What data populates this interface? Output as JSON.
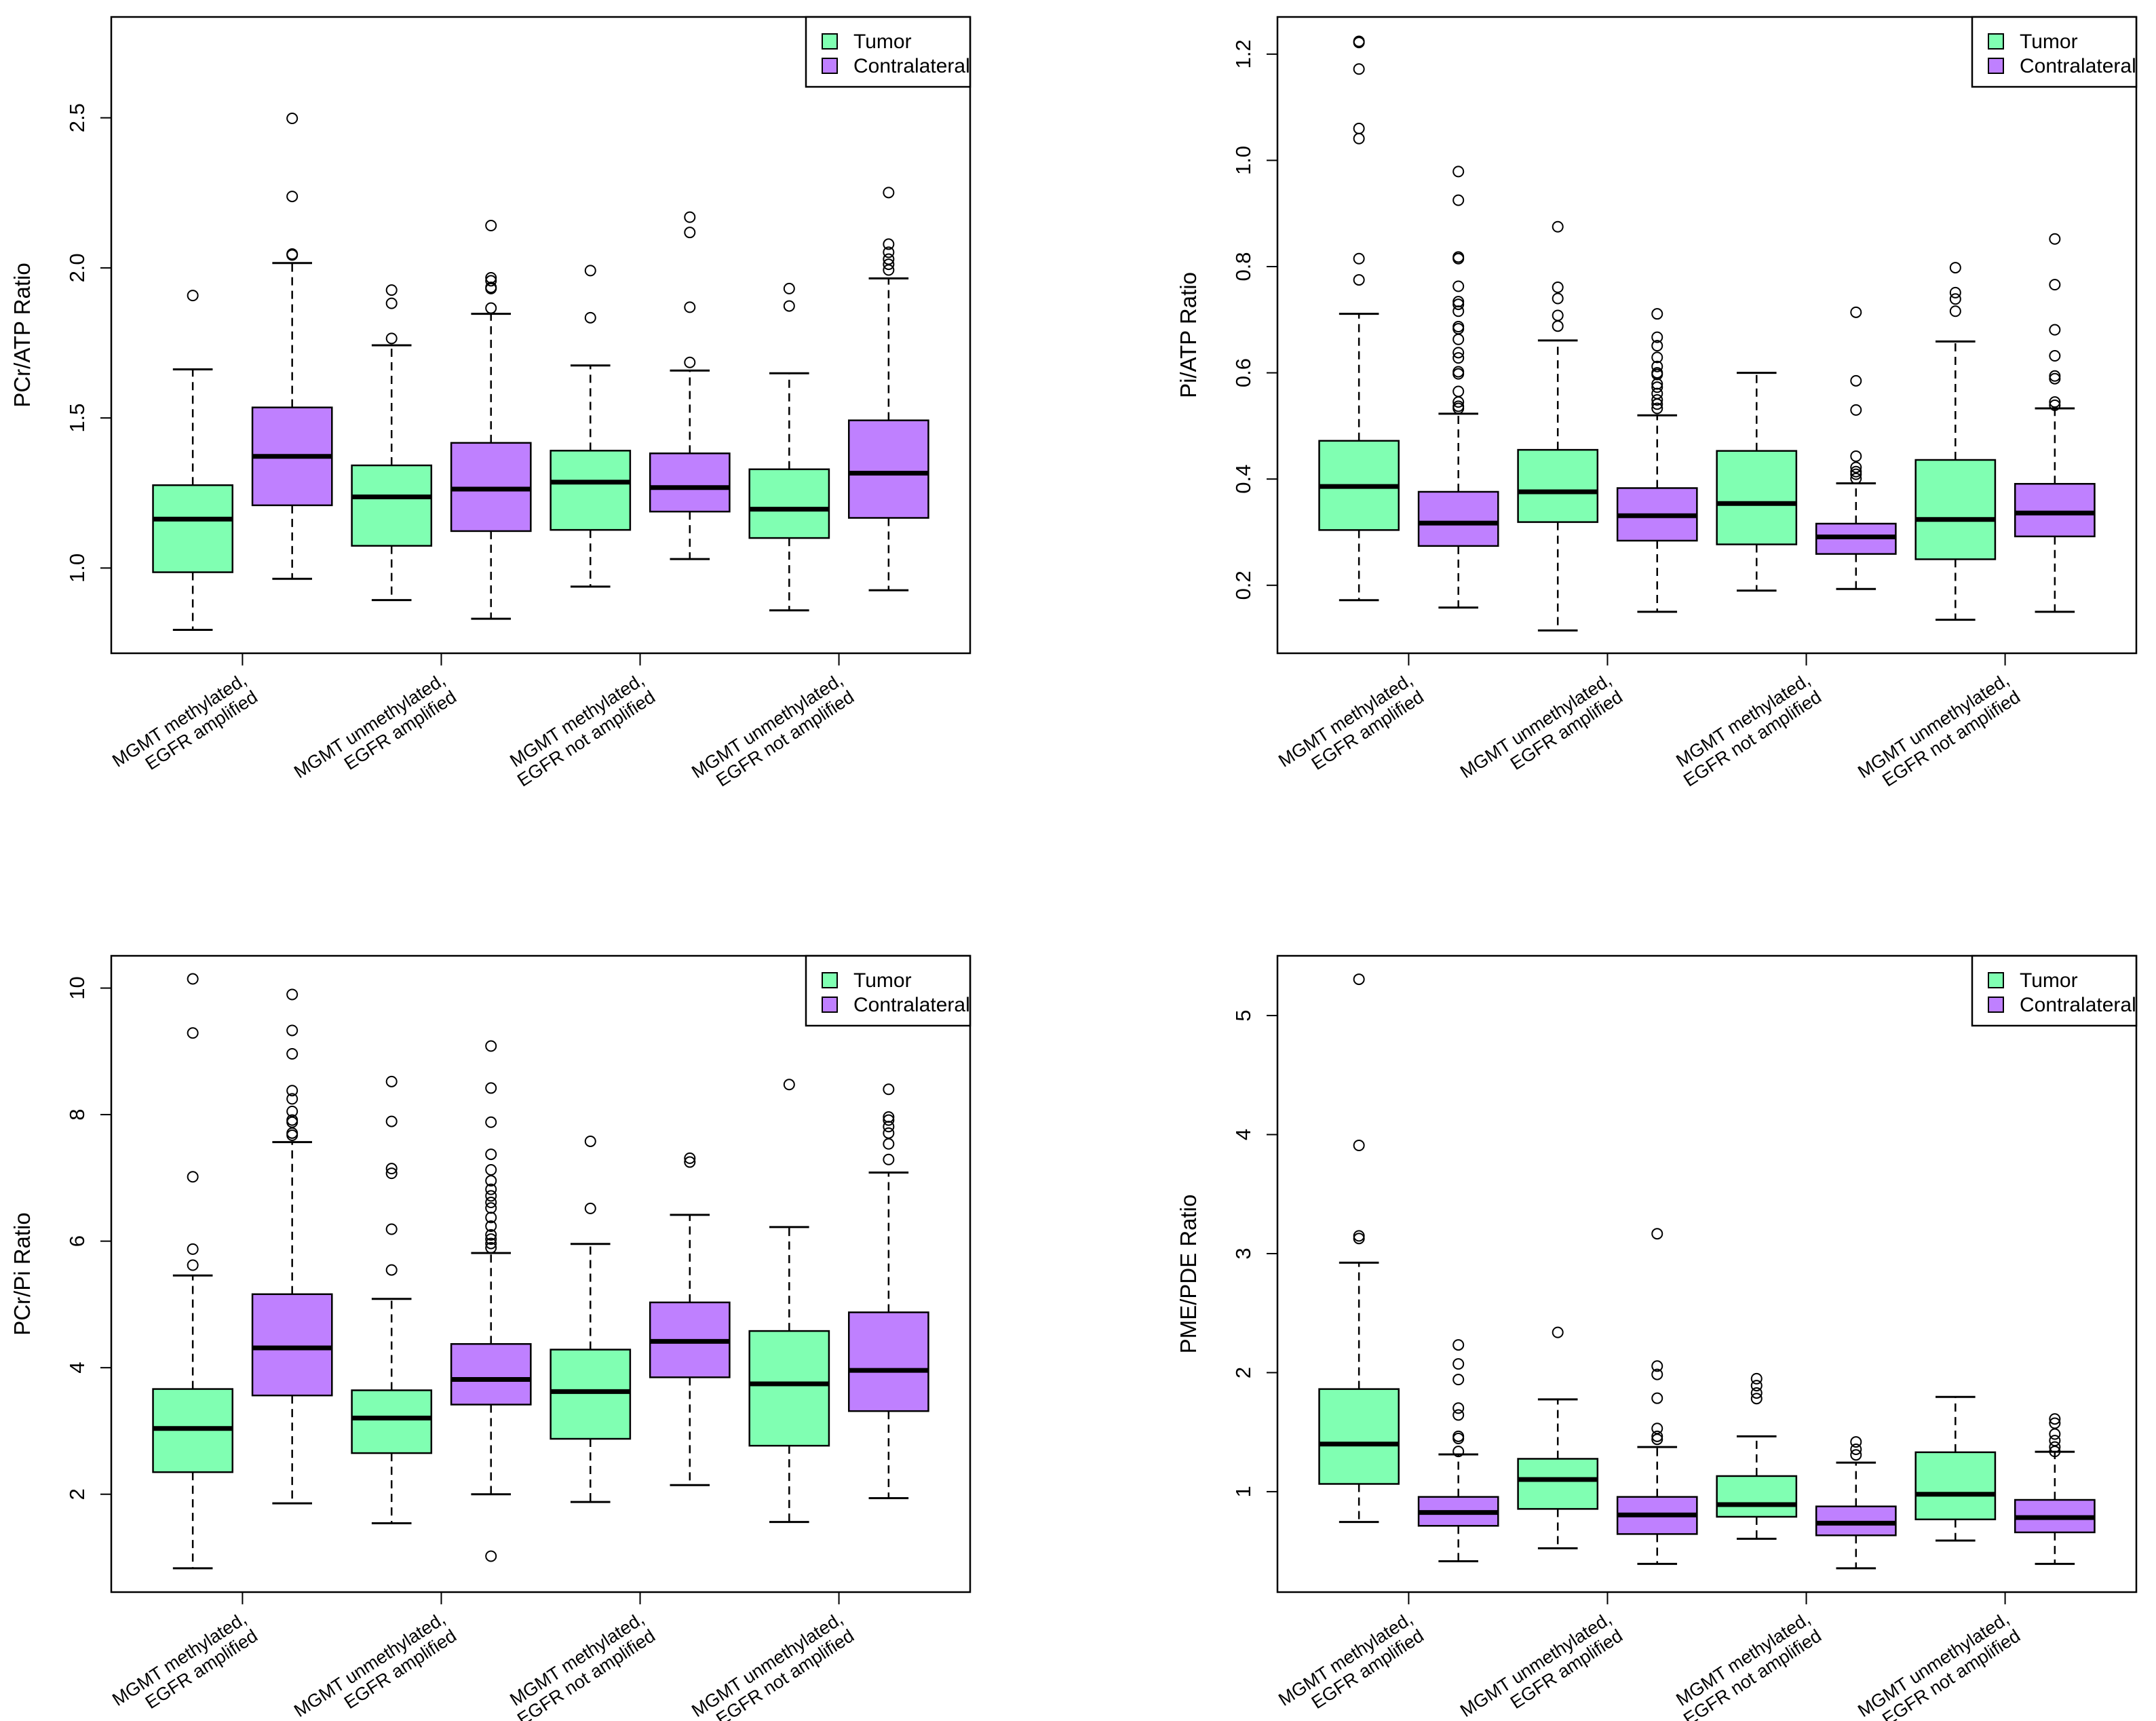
{
  "legend": {
    "tumor": "Tumor",
    "contralateral": "Contralateral"
  },
  "colors": {
    "tumor": "#80FFB2",
    "contralateral": "#BF80FF",
    "line": "#000000"
  },
  "x_categories": [
    [
      "MGMT methylated,",
      "EGFR amplified"
    ],
    [
      "MGMT unmethylated,",
      "EGFR amplified"
    ],
    [
      "MGMT methylated,",
      "EGFR not amplified"
    ],
    [
      "MGMT unmethylated,",
      "EGFR not amplified"
    ]
  ],
  "chart_data": [
    {
      "type": "boxplot",
      "ylabel": "PCr/ATP Ratio",
      "ylim": [
        0.716,
        2.836
      ],
      "yticks": [
        "1.0",
        "1.5",
        "2.0",
        "2.5"
      ],
      "legend_position": "top-right",
      "boxes": [
        {
          "series": "tumor",
          "stats": [
            0.794,
            0.986,
            1.163,
            1.276,
            1.662
          ],
          "outliers": [
            1.908
          ]
        },
        {
          "series": "contralateral",
          "stats": [
            0.964,
            1.209,
            1.372,
            1.535,
            2.016
          ],
          "outliers": [
            2.498,
            2.238,
            2.046,
            2.043
          ]
        },
        {
          "series": "tumor",
          "stats": [
            0.893,
            1.074,
            1.237,
            1.342,
            1.742
          ],
          "outliers": [
            1.926,
            1.882,
            1.765
          ]
        },
        {
          "series": "contralateral",
          "stats": [
            0.831,
            1.123,
            1.263,
            1.417,
            1.847
          ],
          "outliers": [
            2.141,
            1.967,
            1.957,
            1.935,
            1.931,
            1.866
          ]
        },
        {
          "series": "tumor",
          "stats": [
            0.938,
            1.127,
            1.286,
            1.391,
            1.675
          ],
          "outliers": [
            1.991,
            1.834
          ]
        },
        {
          "series": "contralateral",
          "stats": [
            1.03,
            1.188,
            1.268,
            1.382,
            1.658
          ],
          "outliers": [
            2.169,
            2.118,
            1.869,
            1.685
          ]
        },
        {
          "series": "tumor",
          "stats": [
            0.859,
            1.1,
            1.196,
            1.329,
            1.649
          ],
          "outliers": [
            1.931,
            1.873
          ]
        },
        {
          "series": "contralateral",
          "stats": [
            0.926,
            1.167,
            1.316,
            1.492,
            1.965
          ],
          "outliers": [
            2.251,
            2.079,
            2.052,
            2.029,
            2.012,
            1.993
          ]
        }
      ]
    },
    {
      "type": "boxplot",
      "ylabel": "Pi/ATP Ratio",
      "ylim": [
        0.072,
        1.27
      ],
      "yticks": [
        "0.2",
        "0.4",
        "0.6",
        "0.8",
        "1.0",
        "1.2"
      ],
      "legend_position": "top-right",
      "boxes": [
        {
          "series": "tumor",
          "stats": [
            0.172,
            0.304,
            0.386,
            0.472,
            0.711
          ],
          "outliers": [
            1.224,
            1.222,
            1.172,
            1.06,
            1.041,
            0.815,
            0.775
          ]
        },
        {
          "series": "contralateral",
          "stats": [
            0.158,
            0.274,
            0.317,
            0.376,
            0.523
          ],
          "outliers": [
            0.979,
            0.925,
            0.818,
            0.815,
            0.763,
            0.734,
            0.729,
            0.716,
            0.687,
            0.683,
            0.663,
            0.638,
            0.628,
            0.602,
            0.598,
            0.565,
            0.545,
            0.537,
            0.533
          ]
        },
        {
          "series": "tumor",
          "stats": [
            0.115,
            0.319,
            0.376,
            0.455,
            0.661
          ],
          "outliers": [
            0.875,
            0.761,
            0.74,
            0.708,
            0.688
          ]
        },
        {
          "series": "contralateral",
          "stats": [
            0.15,
            0.284,
            0.331,
            0.383,
            0.52
          ],
          "outliers": [
            0.711,
            0.667,
            0.651,
            0.629,
            0.612,
            0.6,
            0.597,
            0.579,
            0.573,
            0.561,
            0.549,
            0.541,
            0.533
          ]
        },
        {
          "series": "tumor",
          "stats": [
            0.19,
            0.277,
            0.354,
            0.453,
            0.6
          ],
          "outliers": []
        },
        {
          "series": "contralateral",
          "stats": [
            0.193,
            0.259,
            0.291,
            0.316,
            0.392
          ],
          "outliers": [
            0.714,
            0.585,
            0.53,
            0.443,
            0.422,
            0.414,
            0.409,
            0.401
          ]
        },
        {
          "series": "tumor",
          "stats": [
            0.135,
            0.249,
            0.324,
            0.436,
            0.659
          ],
          "outliers": [
            0.798,
            0.751,
            0.739,
            0.716
          ]
        },
        {
          "series": "contralateral",
          "stats": [
            0.15,
            0.292,
            0.336,
            0.391,
            0.533
          ],
          "outliers": [
            0.852,
            0.766,
            0.681,
            0.632,
            0.594,
            0.589,
            0.545,
            0.539
          ]
        }
      ]
    },
    {
      "type": "boxplot",
      "ylabel": "PCr/Pi Ratio",
      "ylim": [
        0.453,
        10.51
      ],
      "yticks": [
        "2",
        "4",
        "6",
        "8",
        "10"
      ],
      "legend_position": "top-right",
      "boxes": [
        {
          "series": "tumor",
          "stats": [
            0.83,
            2.349,
            3.04,
            3.663,
            5.457
          ],
          "outliers": [
            10.145,
            9.29,
            7.017,
            5.874,
            5.621
          ]
        },
        {
          "series": "contralateral",
          "stats": [
            1.856,
            3.561,
            4.313,
            5.162,
            7.565
          ],
          "outliers": [
            9.899,
            9.331,
            8.961,
            8.379,
            8.249,
            8.051,
            7.914,
            7.88,
            7.708,
            7.674
          ]
        },
        {
          "series": "tumor",
          "stats": [
            1.541,
            2.65,
            3.205,
            3.643,
            5.087
          ],
          "outliers": [
            8.523,
            7.893,
            7.147,
            7.072,
            6.189,
            5.545
          ]
        },
        {
          "series": "contralateral",
          "stats": [
            2.0,
            3.417,
            3.814,
            4.375,
            5.812
          ],
          "outliers": [
            9.084,
            8.42,
            7.88,
            7.373,
            7.127,
            6.955,
            6.819,
            6.716,
            6.613,
            6.524,
            6.374,
            6.237,
            6.1,
            6.032,
            5.963,
            5.895,
            1.021
          ]
        },
        {
          "series": "tumor",
          "stats": [
            1.877,
            2.876,
            3.622,
            4.286,
            5.956
          ],
          "outliers": [
            7.578,
            6.517
          ]
        },
        {
          "series": "contralateral",
          "stats": [
            2.144,
            3.848,
            4.416,
            5.032,
            6.415
          ],
          "outliers": [
            7.311,
            7.25
          ]
        },
        {
          "series": "tumor",
          "stats": [
            1.562,
            2.767,
            3.745,
            4.58,
            6.223
          ],
          "outliers": [
            8.475
          ]
        },
        {
          "series": "contralateral",
          "stats": [
            1.938,
            3.314,
            3.958,
            4.875,
            7.085
          ],
          "outliers": [
            8.4,
            7.962,
            7.914,
            7.811,
            7.708,
            7.537,
            7.291
          ]
        }
      ]
    },
    {
      "type": "boxplot",
      "ylabel": "PME/PDE Ratio",
      "ylim": [
        0.156,
        5.502
      ],
      "yticks": [
        "1",
        "2",
        "3",
        "4",
        "5"
      ],
      "legend_position": "top-right",
      "boxes": [
        {
          "series": "tumor",
          "stats": [
            0.745,
            1.065,
            1.4,
            1.862,
            2.924
          ],
          "outliers": [
            5.305,
            3.909,
            3.149,
            3.127
          ]
        },
        {
          "series": "contralateral",
          "stats": [
            0.415,
            0.713,
            0.825,
            0.956,
            1.313
          ],
          "outliers": [
            2.233,
            2.073,
            1.942,
            1.702,
            1.644,
            1.465,
            1.447,
            1.338
          ]
        },
        {
          "series": "tumor",
          "stats": [
            0.524,
            0.855,
            1.102,
            1.276,
            1.775
          ],
          "outliers": [
            2.338
          ]
        },
        {
          "series": "contralateral",
          "stats": [
            0.393,
            0.644,
            0.804,
            0.956,
            1.375
          ],
          "outliers": [
            3.167,
            2.055,
            1.985,
            1.785,
            1.531,
            1.465,
            1.44
          ]
        },
        {
          "series": "tumor",
          "stats": [
            0.604,
            0.789,
            0.891,
            1.131,
            1.465
          ],
          "outliers": [
            1.949,
            1.891,
            1.829,
            1.782
          ]
        },
        {
          "series": "contralateral",
          "stats": [
            0.356,
            0.633,
            0.735,
            0.876,
            1.244
          ],
          "outliers": [
            1.418,
            1.356,
            1.309
          ]
        },
        {
          "series": "tumor",
          "stats": [
            0.589,
            0.767,
            0.978,
            1.331,
            1.796
          ],
          "outliers": []
        },
        {
          "series": "contralateral",
          "stats": [
            0.393,
            0.658,
            0.782,
            0.931,
            1.335
          ],
          "outliers": [
            1.611,
            1.575,
            1.484,
            1.429,
            1.375,
            1.338
          ]
        }
      ]
    }
  ]
}
